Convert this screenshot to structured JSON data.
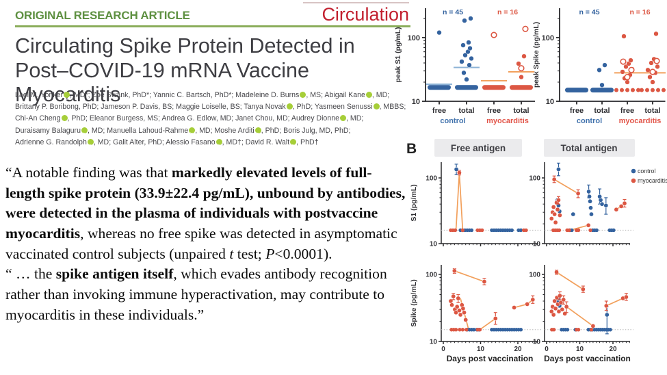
{
  "masthead": {
    "kicker": "ORIGINAL RESEARCH ARTICLE",
    "journal": "Circulation",
    "title_lines": [
      "Circulating Spike Protein Detected in",
      "Post–COVID-19 mRNA Vaccine Myocarditis"
    ],
    "colors": {
      "kicker_green": "#5e9041",
      "journal_red": "#c2202f",
      "rule_green": "#8aad5a",
      "rule_pink": "#d8c4c4",
      "title_gray": "#3e3e43",
      "author_gray": "#48484c",
      "orcid_green": "#a6ce39"
    }
  },
  "authors": {
    "lines": [
      [
        {
          "t": "Lael M. Yonker",
          "orcid": true
        },
        {
          "t": ", MD*; Zoe Swank, PhD*; Yannic C. Bartsch, PhD*; Madeleine D. Burns",
          "orcid": true
        },
        {
          "t": ", MS; Abigail Kane",
          "orcid": true
        },
        {
          "t": ", MD;"
        }
      ],
      [
        {
          "t": "Brittany P. Boribong, PhD; Jameson P. Davis, BS; Maggie Loiselle, BS; Tanya Novak",
          "orcid": true
        },
        {
          "t": ", PhD; Yasmeen Senussi",
          "orcid": true
        },
        {
          "t": ", MBBS;"
        }
      ],
      [
        {
          "t": "Chi-An Cheng",
          "orcid": true
        },
        {
          "t": ", PhD; Eleanor Burgess, MS; Andrea G. Edlow, MD; Janet Chou, MD; Audrey Dionne",
          "orcid": true
        },
        {
          "t": ", MD;"
        }
      ],
      [
        {
          "t": "Duraisamy Balaguru",
          "orcid": true
        },
        {
          "t": ", MD; Manuella Lahoud-Rahme",
          "orcid": true
        },
        {
          "t": ", MD; Moshe Arditi",
          "orcid": true
        },
        {
          "t": ", PhD; Boris Julg, MD, PhD;"
        }
      ],
      [
        {
          "t": "Adrienne G. Randolph",
          "orcid": true
        },
        {
          "t": ", MD; Galit Alter, PhD; Alessio Fasano",
          "orcid": true
        },
        {
          "t": ", MD†; David R. Walt",
          "orcid": true
        },
        {
          "t": ", PhD†"
        }
      ]
    ]
  },
  "quote": {
    "paragraphs": [
      [
        {
          "t": "“A notable finding was that "
        },
        {
          "t": "markedly elevated levels of full-length spike protein (33.9±22.4 pg/mL), unbound by antibodies, were detected in the plasma of individuals with postvaccine myocarditis",
          "b": true
        },
        {
          "t": ", whereas no free spike was detected in asymptomatic vaccinated control subjects (unpaired "
        },
        {
          "t": "t",
          "i": true
        },
        {
          "t": " test; "
        },
        {
          "t": "P",
          "i": true
        },
        {
          "t": "<0.0001)."
        }
      ],
      [
        {
          "t": "“ … the "
        },
        {
          "t": "spike antigen itself",
          "b": true
        },
        {
          "t": ", which evades antibody recognition rather than invoking immune hyperactivation, may contribute to myocarditis in these individuals.”"
        }
      ]
    ]
  },
  "figure_b": {
    "panel_label": "B",
    "column_headers": [
      "Free antigen",
      "Total antigen"
    ],
    "legend": [
      {
        "label": "control",
        "color": "#34639f"
      },
      {
        "label": "myocarditis",
        "color": "#dc5743"
      }
    ],
    "xlabel": "Days post vaccination",
    "xticks": [
      0,
      10,
      20
    ]
  },
  "chart_data": [
    {
      "id": "peak-s1",
      "panel": "A",
      "type": "scatter",
      "yscale": "log",
      "ylabel": "peak S1 (pg/mL)",
      "yticks": [
        10,
        100
      ],
      "ylim": [
        10,
        250
      ],
      "categories": [
        "free",
        "total",
        "free",
        "total"
      ],
      "groups": [
        {
          "label": "control",
          "n": "n = 45",
          "color": "#34639f",
          "label_color": "#4273ad",
          "median_color": "#8cb2d6"
        },
        {
          "label": "myocarditis",
          "n": "n = 16",
          "color": "#dc5743",
          "label_color": "#e25549",
          "median_color": "#f2a05c"
        }
      ],
      "cats": [
        {
          "group": 0,
          "base": 16.5,
          "base_style": "bar",
          "median": 18.5,
          "solid": [
            120
          ],
          "open": []
        },
        {
          "group": 0,
          "base": 16.5,
          "base_style": "bar",
          "median": 34,
          "solid": [
            22,
            28,
            37,
            42,
            47,
            53,
            60,
            68,
            76,
            84,
            185,
            200
          ],
          "open": []
        },
        {
          "group": 1,
          "base": 16.5,
          "base_style": "bar",
          "median": 21,
          "solid": [],
          "open": [
            110
          ]
        },
        {
          "group": 1,
          "base": 16.5,
          "base_style": "bar",
          "median": 29,
          "solid": [
            24,
            39,
            51
          ],
          "open": [
            33,
            137
          ]
        }
      ]
    },
    {
      "id": "peak-spike",
      "panel": "A",
      "type": "scatter",
      "yscale": "log",
      "ylabel": "peak Spike (pg/mL)",
      "yticks": [
        10,
        100
      ],
      "ylim": [
        10,
        250
      ],
      "categories": [
        "free",
        "total",
        "free",
        "total"
      ],
      "groups": [
        {
          "label": "control",
          "n": "n = 45",
          "color": "#34639f",
          "label_color": "#4273ad",
          "median_color": "#8cb2d6"
        },
        {
          "label": "myocarditis",
          "n": "n = 16",
          "color": "#dc5743",
          "label_color": "#e25549",
          "median_color": "#f2a05c"
        }
      ],
      "cats": [
        {
          "group": 0,
          "base": 15,
          "base_style": "bar",
          "median": null,
          "solid": [],
          "open": []
        },
        {
          "group": 0,
          "base": 15,
          "base_style": "bar",
          "median": null,
          "solid": [
            18,
            31,
            37
          ],
          "open": []
        },
        {
          "group": 1,
          "base": 15,
          "base_style": "dots",
          "median": 28,
          "solid": [
            20,
            23,
            26,
            29,
            32,
            35,
            39,
            44,
            105
          ],
          "open": [
            24,
            31,
            42
          ]
        },
        {
          "group": 1,
          "base": 15,
          "base_style": "dots",
          "median": 28,
          "solid": [
            20,
            24,
            28,
            31,
            35,
            40,
            46,
            115
          ],
          "open": [
            29,
            43
          ]
        }
      ]
    },
    {
      "id": "free-s1",
      "panel": "B",
      "row": 0,
      "col": 0,
      "type": "scatter",
      "yscale": "log",
      "ylabel": "S1 (pg/mL)",
      "yticks": [
        10,
        100
      ],
      "dotline": 16,
      "series": [
        {
          "name": "control",
          "color": "#34639f",
          "points": [
            [
              3.5,
              135,
              112,
              162
            ]
          ],
          "baseline_days": [
            4.6,
            5.2,
            5.8,
            6.4,
            7,
            7.6,
            13,
            13.6,
            14.2,
            14.8,
            15.4,
            16,
            16.6,
            17.2,
            17.8,
            18.4,
            20.2,
            20.8
          ]
        },
        {
          "name": "myocarditis",
          "color": "#dc5743",
          "points": [
            [
              4.3,
              120,
              111,
              130
            ]
          ],
          "baseline_days": [
            2,
            2.6,
            3.2,
            5.2,
            9.2,
            9.8,
            10.4,
            21.6,
            22.2
          ],
          "trend_lines": [
            [
              [
                3.4,
                16
              ],
              [
                4.3,
                120
              ],
              [
                5.2,
                16
              ]
            ]
          ]
        }
      ]
    },
    {
      "id": "total-s1",
      "panel": "B",
      "row": 0,
      "col": 1,
      "type": "scatter",
      "yscale": "log",
      "yticks": [
        10,
        100
      ],
      "dotline": 16,
      "series": [
        {
          "name": "control",
          "color": "#34639f",
          "points": [
            [
              3.6,
              135,
              108,
              168
            ],
            [
              3.3,
              46
            ],
            [
              3.6,
              38
            ],
            [
              3.9,
              31
            ],
            [
              8,
              28
            ],
            [
              12.7,
              62,
              50,
              78
            ],
            [
              12.9,
              52
            ],
            [
              13.1,
              44
            ],
            [
              13.3,
              35
            ],
            [
              13.5,
              28
            ],
            [
              16,
              52,
              40,
              68
            ],
            [
              16.3,
              46
            ],
            [
              16.7,
              40
            ],
            [
              17.9,
              38,
              28,
              50
            ]
          ],
          "baseline_days": [
            7,
            7.6,
            13.9,
            14.5,
            15.1,
            19,
            19.6,
            20.2
          ]
        },
        {
          "name": "myocarditis",
          "color": "#dc5743",
          "points": [
            [
              2.3,
              95,
              85,
              107
            ],
            [
              9.5,
              58,
              50,
              66
            ],
            [
              1.5,
              24
            ],
            [
              1.8,
              30
            ],
            [
              2.1,
              36
            ],
            [
              2.4,
              28
            ],
            [
              2.7,
              21
            ],
            [
              3,
              42
            ],
            [
              3.3,
              33
            ],
            [
              3.6,
              46,
              40,
              52
            ],
            [
              4,
              27
            ],
            [
              12.6,
              19
            ],
            [
              21,
              33
            ],
            [
              22.5,
              37
            ],
            [
              23.5,
              41,
              36,
              47
            ]
          ],
          "baseline_days": [
            2,
            2.6,
            3.2,
            3.8,
            6.2,
            6.8,
            9,
            9.6,
            13.2
          ],
          "trend_lines": [
            [
              [
                2.3,
                95
              ],
              [
                9.5,
                58
              ]
            ],
            [
              [
                7,
                16
              ],
              [
                12.6,
                19
              ]
            ],
            [
              [
                21,
                33
              ],
              [
                22.5,
                37
              ],
              [
                23.5,
                41
              ]
            ]
          ]
        }
      ]
    },
    {
      "id": "free-spike",
      "panel": "B",
      "row": 1,
      "col": 0,
      "type": "scatter",
      "yscale": "log",
      "ylabel": "Spike (pg/mL)",
      "yticks": [
        10,
        100
      ],
      "dotline": 15,
      "series": [
        {
          "name": "control",
          "color": "#34639f",
          "points": [],
          "baseline_days": [
            6.4,
            7,
            7.6,
            8.2,
            9,
            9.6,
            13,
            13.6,
            14.2,
            14.8,
            15.4,
            16,
            16.6,
            17.2,
            17.8,
            18.4,
            19,
            19.6,
            20.2,
            20.8
          ]
        },
        {
          "name": "myocarditis",
          "color": "#dc5743",
          "points": [
            [
              3,
              113,
              104,
              122
            ],
            [
              11,
              78,
              70,
              87
            ],
            [
              2,
              40
            ],
            [
              2.3,
              35
            ],
            [
              2.7,
              47,
              42,
              52
            ],
            [
              3.1,
              30
            ],
            [
              3.4,
              27
            ],
            [
              3.7,
              33
            ],
            [
              4,
              44,
              38,
              50
            ],
            [
              4.3,
              29
            ],
            [
              4.6,
              25
            ],
            [
              5,
              35
            ],
            [
              5.3,
              31
            ],
            [
              5.6,
              27
            ],
            [
              6,
              21
            ],
            [
              14,
              22,
              18,
              27
            ],
            [
              19,
              32
            ],
            [
              22.5,
              36
            ],
            [
              24,
              42,
              37,
              48
            ]
          ],
          "baseline_days": [
            2.2,
            2.8,
            3.4,
            4.4,
            5.2,
            6.2,
            9.2,
            9.8
          ],
          "trend_lines": [
            [
              [
                3,
                113
              ],
              [
                11,
                78
              ]
            ],
            [
              [
                4.6,
                44
              ],
              [
                6.8,
                15
              ]
            ],
            [
              [
                9.8,
                15
              ],
              [
                14,
                22
              ]
            ],
            [
              [
                19,
                32
              ],
              [
                22.5,
                36
              ],
              [
                24,
                42
              ]
            ]
          ]
        }
      ]
    },
    {
      "id": "total-spike",
      "panel": "B",
      "row": 1,
      "col": 1,
      "type": "scatter",
      "yscale": "log",
      "yticks": [
        10,
        100
      ],
      "dotline": 15,
      "series": [
        {
          "name": "control",
          "color": "#34639f",
          "points": [
            [
              3.3,
              42
            ],
            [
              3.5,
              38
            ],
            [
              3.7,
              45
            ],
            [
              3.9,
              34
            ],
            [
              18.2,
              25,
              13,
              33
            ]
          ],
          "baseline_days": [
            4.5,
            5.1,
            5.7,
            6.3,
            8.7,
            12.6,
            13.2,
            13.8,
            14.4,
            15,
            15.6,
            16.2,
            16.8,
            17.4,
            18,
            18.6,
            19.2
          ]
        },
        {
          "name": "myocarditis",
          "color": "#dc5743",
          "points": [
            [
              3,
              108,
              100,
              116
            ],
            [
              11,
              60,
              54,
              67
            ],
            [
              1.5,
              28
            ],
            [
              1.8,
              33
            ],
            [
              2.1,
              25
            ],
            [
              2.4,
              40
            ],
            [
              2.7,
              31
            ],
            [
              3.1,
              45
            ],
            [
              3.4,
              36
            ],
            [
              3.7,
              28
            ],
            [
              4,
              48,
              42,
              55
            ],
            [
              4.3,
              38
            ],
            [
              4.7,
              30
            ],
            [
              5.1,
              42,
              36,
              48
            ],
            [
              5.5,
              26
            ],
            [
              6,
              33,
              27,
              39
            ],
            [
              14,
              17
            ],
            [
              18,
              34,
              29,
              40
            ],
            [
              23,
              44
            ],
            [
              24,
              46,
              41,
              52
            ]
          ],
          "baseline_days": [
            1.6,
            2.2,
            9,
            9.6,
            13.5
          ],
          "trend_lines": [
            [
              [
                3,
                108
              ],
              [
                11,
                60
              ]
            ],
            [
              [
                6,
                33
              ],
              [
                14,
                17
              ]
            ],
            [
              [
                18,
                34
              ],
              [
                23,
                44
              ],
              [
                24,
                46
              ]
            ]
          ]
        }
      ]
    }
  ]
}
